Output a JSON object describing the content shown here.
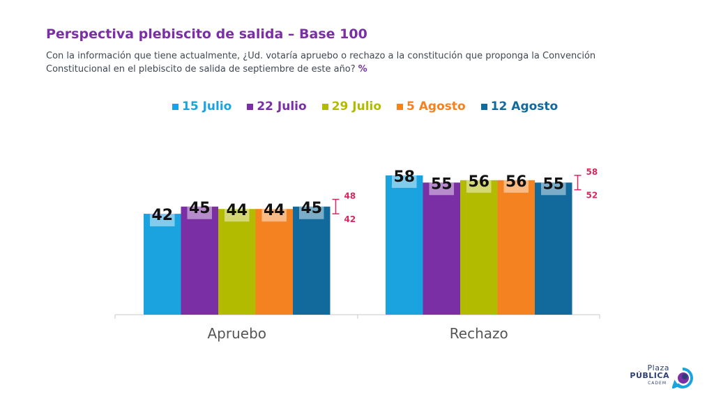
{
  "header": {
    "title": "Perspectiva plebiscito de salida – Base 100",
    "subtitle": "Con la información que tiene actualmente, ¿Ud. votaría apruebo o rechazo a la constitución que proponga la Convención Constitucional en el plebiscito de salida de septiembre de este año?",
    "unit": "%"
  },
  "logo": {
    "line1": "Plaza",
    "line2": "PÚBLICA",
    "line3": "CADEM"
  },
  "chart_data": {
    "type": "bar",
    "categories": [
      "Apruebo",
      "Rechazo"
    ],
    "series": [
      {
        "name": "15 Julio",
        "color": "#1aa3df",
        "values": [
          42,
          58
        ]
      },
      {
        "name": "22 Julio",
        "color": "#7b2fa5",
        "values": [
          45,
          55
        ]
      },
      {
        "name": "29 Julio",
        "color": "#b2bb00",
        "values": [
          44,
          56
        ]
      },
      {
        "name": "5 Agosto",
        "color": "#f58220",
        "values": [
          44,
          56
        ]
      },
      {
        "name": "12 Agosto",
        "color": "#116a9b",
        "values": [
          45,
          55
        ]
      }
    ],
    "ranges": [
      {
        "category": "Apruebo",
        "max": 48,
        "min": 42
      },
      {
        "category": "Rechazo",
        "max": 58,
        "min": 52
      }
    ],
    "range_color": "#d6285c",
    "ylim": [
      0,
      100
    ],
    "legend_position": "top",
    "grid": false
  }
}
